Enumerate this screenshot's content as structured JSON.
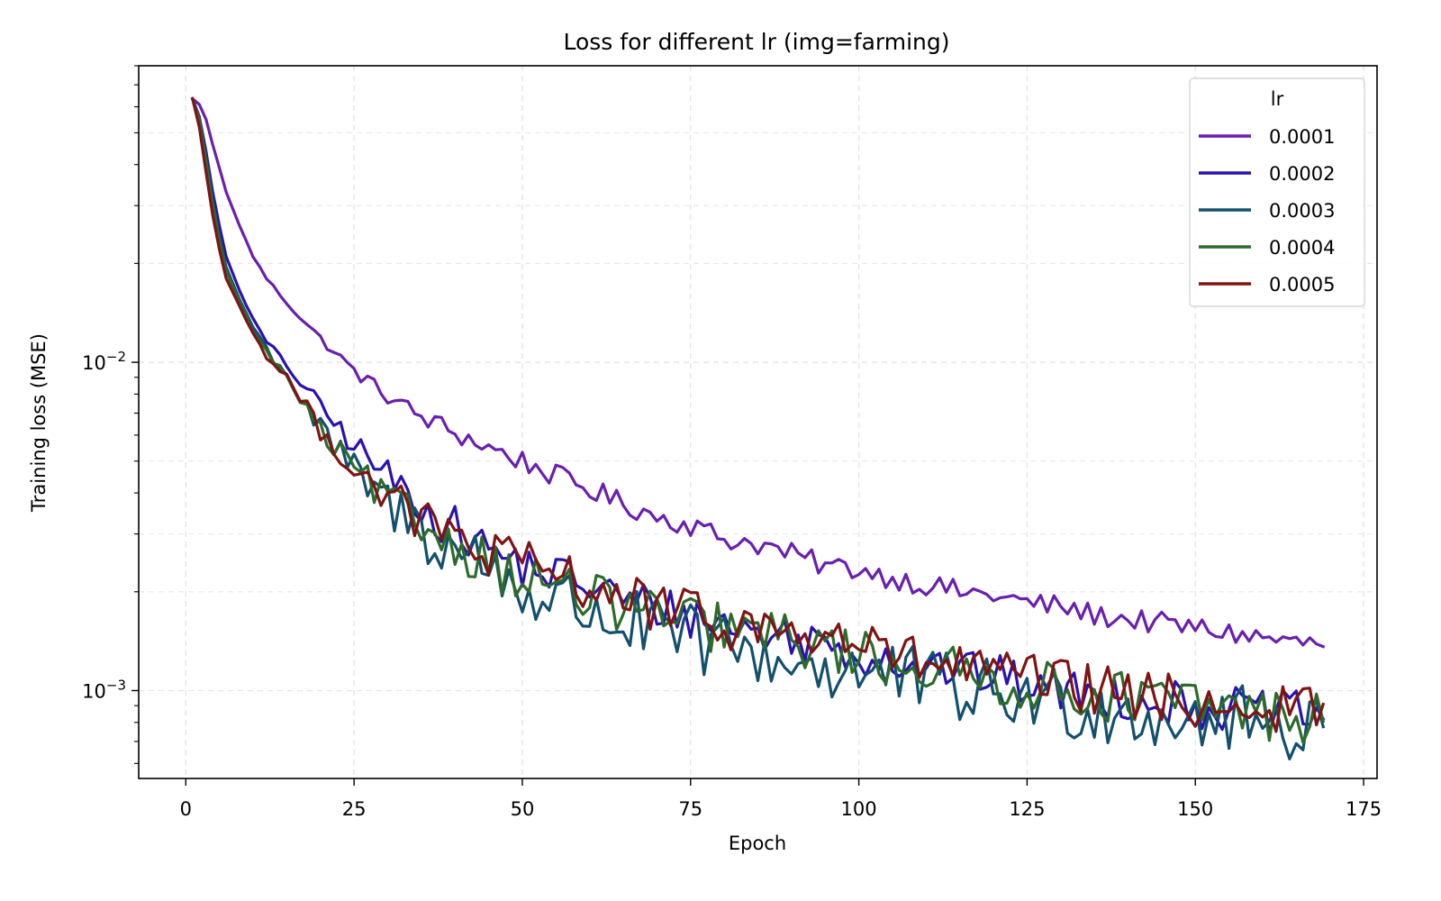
{
  "chart_data": {
    "type": "line",
    "title": "Loss for different lr (img=farming)",
    "xlabel": "Epoch",
    "ylabel": "Training loss (MSE)",
    "xlim": [
      -7,
      177
    ],
    "ylim": [
      0.00054,
      0.08
    ],
    "yscale": "log",
    "xticks": [
      0,
      25,
      50,
      75,
      100,
      125,
      150,
      175
    ],
    "xtick_labels": [
      "0",
      "25",
      "50",
      "75",
      "100",
      "125",
      "150",
      "175"
    ],
    "yticks": [
      0.01,
      0.001
    ],
    "ytick_labels": [
      {
        "base": "10",
        "exp": "−2"
      },
      {
        "base": "10",
        "exp": "−3"
      }
    ],
    "grid": true,
    "legend": {
      "title": "lr",
      "placement": "top-right"
    },
    "x_range": {
      "start": 1,
      "end": 169,
      "step": 1
    },
    "series": [
      {
        "name": "0.0001",
        "color": "#6a1fb0",
        "anchors": [
          [
            1,
            0.0635
          ],
          [
            2,
            0.061
          ],
          [
            3,
            0.055
          ],
          [
            4,
            0.046
          ],
          [
            5,
            0.039
          ],
          [
            6,
            0.033
          ],
          [
            8,
            0.026
          ],
          [
            10,
            0.021
          ],
          [
            12,
            0.018
          ],
          [
            15,
            0.0152
          ],
          [
            20,
            0.0118
          ],
          [
            25,
            0.0094
          ],
          [
            30,
            0.0079
          ],
          [
            35,
            0.0068
          ],
          [
            40,
            0.0061
          ],
          [
            45,
            0.0055
          ],
          [
            50,
            0.005
          ],
          [
            55,
            0.0045
          ],
          [
            60,
            0.0041
          ],
          [
            65,
            0.0037
          ],
          [
            70,
            0.0034
          ],
          [
            75,
            0.0032
          ],
          [
            80,
            0.0029
          ],
          [
            85,
            0.0028
          ],
          [
            90,
            0.0026
          ],
          [
            95,
            0.0024
          ],
          [
            100,
            0.00235
          ],
          [
            105,
            0.0022
          ],
          [
            110,
            0.0021
          ],
          [
            115,
            0.002
          ],
          [
            120,
            0.00195
          ],
          [
            125,
            0.00185
          ],
          [
            130,
            0.0018
          ],
          [
            135,
            0.0017
          ],
          [
            140,
            0.00165
          ],
          [
            145,
            0.0016
          ],
          [
            150,
            0.00155
          ],
          [
            155,
            0.0015
          ],
          [
            160,
            0.00145
          ],
          [
            165,
            0.0014
          ],
          [
            169,
            0.00138
          ]
        ],
        "noise": 0.035
      },
      {
        "name": "0.0002",
        "color": "#2a12b0",
        "anchors": [
          [
            1,
            0.0635
          ],
          [
            2,
            0.056
          ],
          [
            3,
            0.044
          ],
          [
            4,
            0.033
          ],
          [
            5,
            0.026
          ],
          [
            6,
            0.021
          ],
          [
            8,
            0.0165
          ],
          [
            10,
            0.0135
          ],
          [
            12,
            0.0115
          ],
          [
            15,
            0.0098
          ],
          [
            20,
            0.0073
          ],
          [
            25,
            0.0056
          ],
          [
            30,
            0.0045
          ],
          [
            35,
            0.0037
          ],
          [
            40,
            0.0031
          ],
          [
            45,
            0.0027
          ],
          [
            50,
            0.0024
          ],
          [
            55,
            0.00225
          ],
          [
            60,
            0.0021
          ],
          [
            65,
            0.0019
          ],
          [
            70,
            0.0018
          ],
          [
            75,
            0.0017
          ],
          [
            80,
            0.0016
          ],
          [
            85,
            0.0015
          ],
          [
            90,
            0.00145
          ],
          [
            95,
            0.0014
          ],
          [
            100,
            0.0013
          ],
          [
            105,
            0.00125
          ],
          [
            110,
            0.0012
          ],
          [
            115,
            0.00115
          ],
          [
            120,
            0.0011
          ],
          [
            125,
            0.00105
          ],
          [
            130,
            0.001
          ],
          [
            135,
            0.00097
          ],
          [
            140,
            0.00095
          ],
          [
            145,
            0.00093
          ],
          [
            150,
            0.0009
          ],
          [
            155,
            0.00088
          ],
          [
            160,
            0.00086
          ],
          [
            165,
            0.00085
          ],
          [
            169,
            0.00084
          ]
        ],
        "noise": 0.07
      },
      {
        "name": "0.0003",
        "color": "#12506e",
        "anchors": [
          [
            1,
            0.0635
          ],
          [
            2,
            0.055
          ],
          [
            3,
            0.042
          ],
          [
            4,
            0.031
          ],
          [
            5,
            0.024
          ],
          [
            6,
            0.0195
          ],
          [
            8,
            0.0155
          ],
          [
            10,
            0.0128
          ],
          [
            12,
            0.011
          ],
          [
            15,
            0.0092
          ],
          [
            20,
            0.0062
          ],
          [
            25,
            0.0046
          ],
          [
            30,
            0.0037
          ],
          [
            35,
            0.0031
          ],
          [
            40,
            0.0027
          ],
          [
            45,
            0.0024
          ],
          [
            50,
            0.002
          ],
          [
            55,
            0.0019
          ],
          [
            60,
            0.00175
          ],
          [
            65,
            0.0016
          ],
          [
            70,
            0.0015
          ],
          [
            75,
            0.00142
          ],
          [
            80,
            0.00135
          ],
          [
            85,
            0.00128
          ],
          [
            90,
            0.00122
          ],
          [
            95,
            0.00118
          ],
          [
            100,
            0.00113
          ],
          [
            105,
            0.0011
          ],
          [
            110,
            0.00105
          ],
          [
            115,
            0.001
          ],
          [
            120,
            0.00097
          ],
          [
            125,
            0.00094
          ],
          [
            130,
            0.00091
          ],
          [
            135,
            0.00089
          ],
          [
            140,
            0.00087
          ],
          [
            145,
            0.00085
          ],
          [
            150,
            0.00083
          ],
          [
            155,
            0.00081
          ],
          [
            160,
            0.0008
          ],
          [
            165,
            0.00078
          ],
          [
            169,
            0.0008
          ]
        ],
        "noise": 0.11
      },
      {
        "name": "0.0004",
        "color": "#2d6b2a",
        "anchors": [
          [
            1,
            0.0635
          ],
          [
            2,
            0.055
          ],
          [
            3,
            0.041
          ],
          [
            4,
            0.03
          ],
          [
            5,
            0.0235
          ],
          [
            6,
            0.019
          ],
          [
            8,
            0.0152
          ],
          [
            10,
            0.0125
          ],
          [
            12,
            0.0107
          ],
          [
            15,
            0.009
          ],
          [
            20,
            0.0061
          ],
          [
            25,
            0.0047
          ],
          [
            30,
            0.0038
          ],
          [
            35,
            0.0032
          ],
          [
            40,
            0.0028
          ],
          [
            45,
            0.0025
          ],
          [
            50,
            0.0022
          ],
          [
            55,
            0.0021
          ],
          [
            60,
            0.0019
          ],
          [
            65,
            0.0018
          ],
          [
            70,
            0.0017
          ],
          [
            75,
            0.0016
          ],
          [
            80,
            0.00155
          ],
          [
            85,
            0.0015
          ],
          [
            90,
            0.00142
          ],
          [
            95,
            0.00136
          ],
          [
            100,
            0.0013
          ],
          [
            105,
            0.00122
          ],
          [
            110,
            0.00118
          ],
          [
            115,
            0.00112
          ],
          [
            120,
            0.00108
          ],
          [
            125,
            0.00104
          ],
          [
            130,
            0.001
          ],
          [
            135,
            0.00098
          ],
          [
            140,
            0.00095
          ],
          [
            145,
            0.00093
          ],
          [
            150,
            0.0009
          ],
          [
            155,
            0.00088
          ],
          [
            160,
            0.00085
          ],
          [
            165,
            0.00083
          ],
          [
            169,
            0.00082
          ]
        ],
        "noise": 0.08
      },
      {
        "name": "0.0005",
        "color": "#801414",
        "anchors": [
          [
            1,
            0.0635
          ],
          [
            2,
            0.052
          ],
          [
            3,
            0.038
          ],
          [
            4,
            0.028
          ],
          [
            5,
            0.022
          ],
          [
            6,
            0.018
          ],
          [
            8,
            0.0148
          ],
          [
            10,
            0.0122
          ],
          [
            12,
            0.0105
          ],
          [
            15,
            0.009
          ],
          [
            20,
            0.0062
          ],
          [
            25,
            0.0048
          ],
          [
            30,
            0.0039
          ],
          [
            35,
            0.0033
          ],
          [
            40,
            0.0029
          ],
          [
            45,
            0.0026
          ],
          [
            50,
            0.0024
          ],
          [
            55,
            0.00225
          ],
          [
            60,
            0.0021
          ],
          [
            65,
            0.0019
          ],
          [
            70,
            0.0018
          ],
          [
            75,
            0.00168
          ],
          [
            80,
            0.0016
          ],
          [
            85,
            0.00155
          ],
          [
            90,
            0.0015
          ],
          [
            95,
            0.00145
          ],
          [
            100,
            0.0014
          ],
          [
            105,
            0.00128
          ],
          [
            110,
            0.00122
          ],
          [
            115,
            0.00118
          ],
          [
            120,
            0.00113
          ],
          [
            125,
            0.00108
          ],
          [
            130,
            0.00105
          ],
          [
            135,
            0.001
          ],
          [
            140,
            0.00097
          ],
          [
            145,
            0.00094
          ],
          [
            150,
            0.00092
          ],
          [
            155,
            0.0009
          ],
          [
            160,
            0.00088
          ],
          [
            165,
            0.00086
          ],
          [
            169,
            0.00092
          ]
        ],
        "noise": 0.08
      }
    ]
  }
}
